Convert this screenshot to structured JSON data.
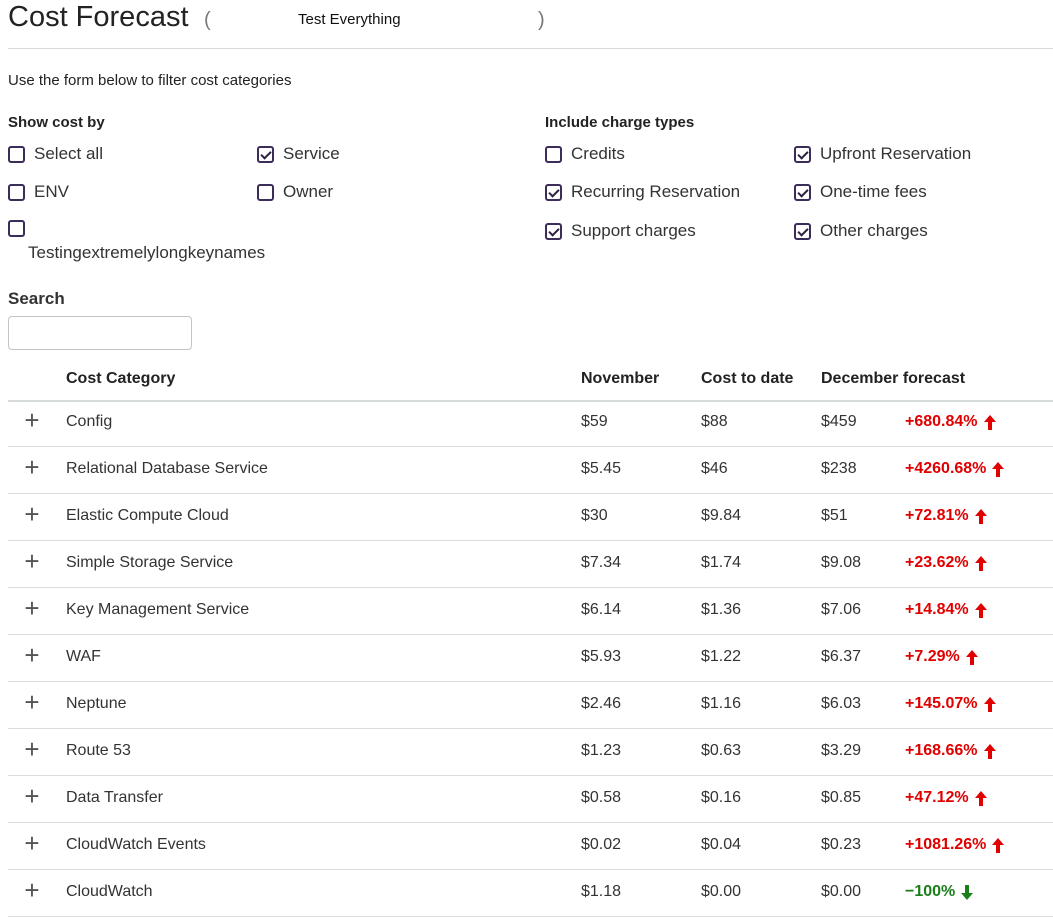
{
  "header": {
    "title": "Cost Forecast",
    "open_paren": "(",
    "close_paren": ")",
    "subtitle": "Test Everything"
  },
  "intro": "Use the form below to filter cost categories",
  "show_cost_by": {
    "title": "Show cost by",
    "options": [
      {
        "label": "Select all",
        "checked": false
      },
      {
        "label": "Service",
        "checked": true
      },
      {
        "label": "ENV",
        "checked": false
      },
      {
        "label": "Owner",
        "checked": false
      },
      {
        "label": "Testingextremelylongkeynames",
        "checked": false
      }
    ]
  },
  "charge_types": {
    "title": "Include charge types",
    "options": [
      {
        "label": "Credits",
        "checked": false
      },
      {
        "label": "Upfront Reservation",
        "checked": true
      },
      {
        "label": "Recurring Reservation",
        "checked": true
      },
      {
        "label": "One-time fees",
        "checked": true
      },
      {
        "label": "Support charges",
        "checked": true
      },
      {
        "label": "Other charges",
        "checked": true
      }
    ]
  },
  "search": {
    "label": "Search",
    "value": "",
    "placeholder": ""
  },
  "table": {
    "columns": [
      "Cost Category",
      "November",
      "Cost to date",
      "December forecast"
    ],
    "rows": [
      {
        "category": "Config",
        "november": "$59",
        "to_date": "$88",
        "forecast": "$459",
        "change": "+680.84%",
        "direction": "up"
      },
      {
        "category": "Relational Database Service",
        "november": "$5.45",
        "to_date": "$46",
        "forecast": "$238",
        "change": "+4260.68%",
        "direction": "up"
      },
      {
        "category": "Elastic Compute Cloud",
        "november": "$30",
        "to_date": "$9.84",
        "forecast": "$51",
        "change": "+72.81%",
        "direction": "up"
      },
      {
        "category": "Simple Storage Service",
        "november": "$7.34",
        "to_date": "$1.74",
        "forecast": "$9.08",
        "change": "+23.62%",
        "direction": "up"
      },
      {
        "category": "Key Management Service",
        "november": "$6.14",
        "to_date": "$1.36",
        "forecast": "$7.06",
        "change": "+14.84%",
        "direction": "up"
      },
      {
        "category": "WAF",
        "november": "$5.93",
        "to_date": "$1.22",
        "forecast": "$6.37",
        "change": "+7.29%",
        "direction": "up"
      },
      {
        "category": "Neptune",
        "november": "$2.46",
        "to_date": "$1.16",
        "forecast": "$6.03",
        "change": "+145.07%",
        "direction": "up"
      },
      {
        "category": "Route 53",
        "november": "$1.23",
        "to_date": "$0.63",
        "forecast": "$3.29",
        "change": "+168.66%",
        "direction": "up"
      },
      {
        "category": "Data Transfer",
        "november": "$0.58",
        "to_date": "$0.16",
        "forecast": "$0.85",
        "change": "+47.12%",
        "direction": "up"
      },
      {
        "category": "CloudWatch Events",
        "november": "$0.02",
        "to_date": "$0.04",
        "forecast": "$0.23",
        "change": "+1081.26%",
        "direction": "up"
      },
      {
        "category": "CloudWatch",
        "november": "$1.18",
        "to_date": "$0.00",
        "forecast": "$0.00",
        "change": "−100%",
        "direction": "down"
      }
    ]
  },
  "icons": {
    "expand": "plus-icon",
    "up": "arrow-up-icon",
    "down": "arrow-down-icon"
  },
  "colors": {
    "up": "#e00000",
    "down": "#1a7f1a",
    "checkbox": "#3b2c5a"
  }
}
